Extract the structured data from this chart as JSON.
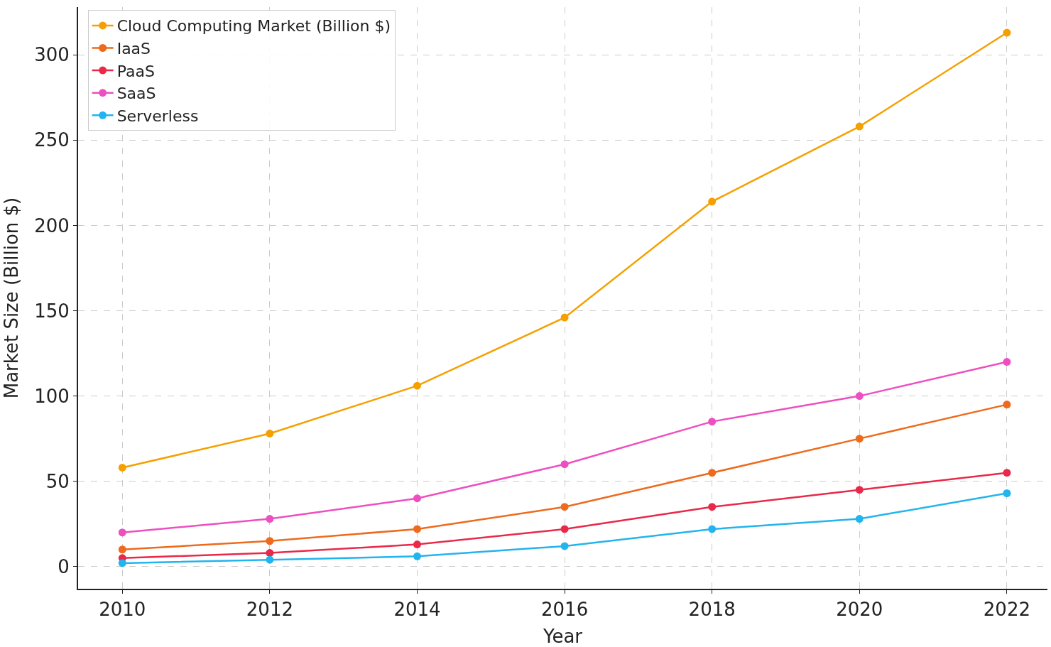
{
  "chart_data": {
    "type": "line",
    "xlabel": "Year",
    "ylabel": "Market Size (Billion $)",
    "x": [
      2010,
      2012,
      2014,
      2016,
      2018,
      2020,
      2022
    ],
    "series": [
      {
        "name": "Cloud Computing Market (Billion $)",
        "color": "#f5a000",
        "values": [
          58,
          78,
          106,
          146,
          214,
          258,
          313
        ]
      },
      {
        "name": "IaaS",
        "color": "#ee6a1c",
        "values": [
          10,
          15,
          22,
          35,
          55,
          75,
          95
        ]
      },
      {
        "name": "PaaS",
        "color": "#e8294a",
        "values": [
          5,
          8,
          13,
          22,
          35,
          45,
          55
        ]
      },
      {
        "name": "SaaS",
        "color": "#ee4fc0",
        "values": [
          20,
          28,
          40,
          60,
          85,
          100,
          120
        ]
      },
      {
        "name": "Serverless",
        "color": "#22b4ee",
        "values": [
          2,
          4,
          6,
          12,
          22,
          28,
          43
        ]
      }
    ],
    "xlim": [
      2009.4,
      2022.55
    ],
    "xticks": [
      2010,
      2012,
      2014,
      2016,
      2018,
      2020,
      2022
    ],
    "ylim": [
      -13,
      328
    ],
    "yticks": [
      0,
      50,
      100,
      150,
      200,
      250,
      300
    ],
    "grid": true,
    "legend": "top left",
    "marker": "circle",
    "line_style": "solid"
  }
}
